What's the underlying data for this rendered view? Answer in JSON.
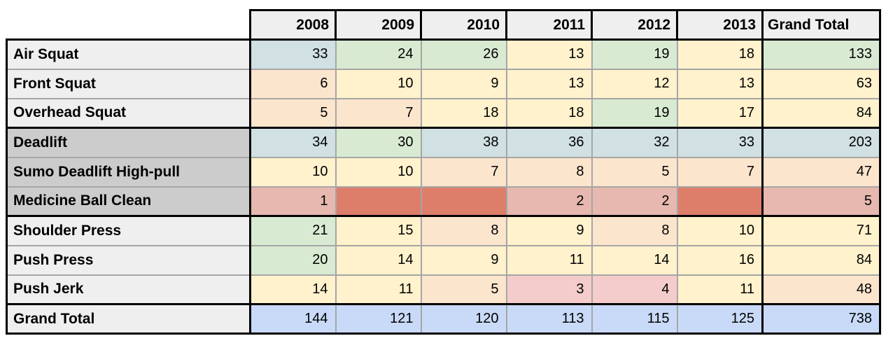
{
  "table": {
    "corner_label": "",
    "columns": [
      "2008",
      "2009",
      "2010",
      "2011",
      "2012",
      "2013",
      "Grand Total"
    ],
    "rows": [
      {
        "label": "Air Squat",
        "shade": "light",
        "thick_top": false,
        "thick_bottom": false,
        "values": [
          "33",
          "24",
          "26",
          "13",
          "19",
          "18",
          "133"
        ],
        "colors": [
          "blue",
          "green",
          "green",
          "yellow",
          "green",
          "yellow",
          "green"
        ]
      },
      {
        "label": "Front Squat",
        "shade": "light",
        "thick_top": false,
        "thick_bottom": false,
        "values": [
          "6",
          "10",
          "9",
          "13",
          "12",
          "13",
          "63"
        ],
        "colors": [
          "peach",
          "yellow",
          "yellow",
          "yellow",
          "yellow",
          "yellow",
          "yellow"
        ]
      },
      {
        "label": "Overhead Squat",
        "shade": "light",
        "thick_top": false,
        "thick_bottom": false,
        "values": [
          "5",
          "7",
          "18",
          "18",
          "19",
          "17",
          "84"
        ],
        "colors": [
          "peach",
          "peach",
          "yellow",
          "yellow",
          "green",
          "yellow",
          "yellow"
        ]
      },
      {
        "label": "Deadlift",
        "shade": "dark",
        "thick_top": true,
        "thick_bottom": false,
        "values": [
          "34",
          "30",
          "38",
          "36",
          "32",
          "33",
          "203"
        ],
        "colors": [
          "blue",
          "green",
          "blue",
          "blue",
          "blue",
          "blue",
          "blue"
        ]
      },
      {
        "label": "Sumo Deadlift High-pull",
        "shade": "dark",
        "thick_top": false,
        "thick_bottom": false,
        "values": [
          "10",
          "10",
          "7",
          "8",
          "5",
          "7",
          "47"
        ],
        "colors": [
          "yellow",
          "yellow",
          "peach",
          "peach",
          "peach",
          "peach",
          "peach"
        ]
      },
      {
        "label": "Medicine Ball Clean",
        "shade": "dark",
        "thick_top": false,
        "thick_bottom": true,
        "values": [
          "1",
          "",
          "",
          "2",
          "2",
          "",
          "5"
        ],
        "colors": [
          "salmon",
          "red",
          "red",
          "salmon",
          "salmon",
          "red",
          "salmon"
        ]
      },
      {
        "label": "Shoulder Press",
        "shade": "light",
        "thick_top": false,
        "thick_bottom": false,
        "values": [
          "21",
          "15",
          "8",
          "9",
          "8",
          "10",
          "71"
        ],
        "colors": [
          "green",
          "yellow",
          "peach",
          "yellow",
          "peach",
          "yellow",
          "yellow"
        ]
      },
      {
        "label": "Push Press",
        "shade": "light",
        "thick_top": false,
        "thick_bottom": false,
        "values": [
          "20",
          "14",
          "9",
          "11",
          "14",
          "16",
          "84"
        ],
        "colors": [
          "green",
          "yellow",
          "yellow",
          "yellow",
          "yellow",
          "yellow",
          "yellow"
        ]
      },
      {
        "label": "Push Jerk",
        "shade": "light",
        "thick_top": false,
        "thick_bottom": false,
        "values": [
          "14",
          "11",
          "5",
          "3",
          "4",
          "11",
          "48"
        ],
        "colors": [
          "yellow",
          "yellow",
          "peach",
          "pink",
          "pink",
          "yellow",
          "peach"
        ]
      },
      {
        "label": "Grand Total",
        "shade": "light",
        "thick_top": true,
        "thick_bottom": false,
        "values": [
          "144",
          "121",
          "120",
          "113",
          "115",
          "125",
          "738"
        ],
        "colors": [
          "total",
          "total",
          "total",
          "total",
          "total",
          "total",
          "total"
        ]
      }
    ],
    "palette": {
      "blue": "#d0e0e3",
      "green": "#d9ead3",
      "yellow": "#fff2cc",
      "peach": "#fce5cd",
      "salmon": "#e6b8af",
      "pink": "#f4cccc",
      "red": "#dd7e6b",
      "total": "#c9daf8",
      "label_light": "#efefef",
      "label_dark": "#cccccc",
      "grid": "#a6a6a6",
      "border": "#000000"
    }
  }
}
